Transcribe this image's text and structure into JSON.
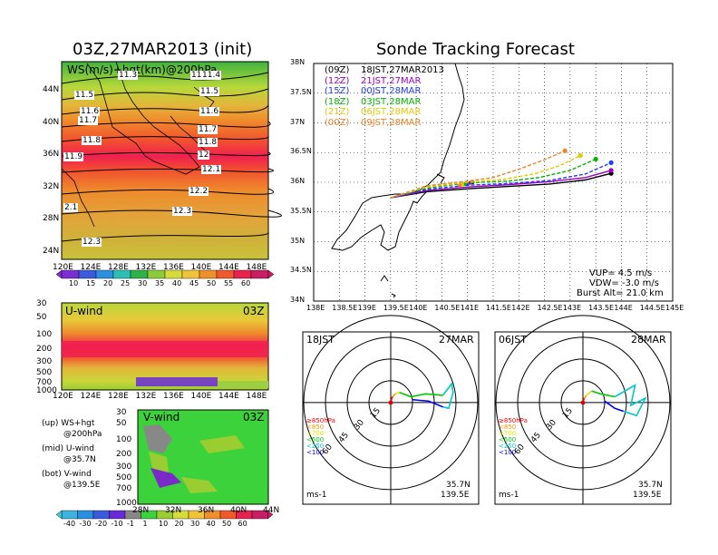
{
  "left_title": "03Z,27MAR2013 (init)",
  "right_title": "Sonde Tracking Forecast",
  "top_map": {
    "label": "WS(m/s)+hgt(km)@200hPa",
    "lon_ticks": [
      "120E",
      "124E",
      "128E",
      "132E",
      "136E",
      "140E",
      "144E",
      "148E"
    ],
    "lat_ticks": [
      "44N",
      "40N",
      "36N",
      "32N",
      "28N",
      "24N"
    ],
    "contour_labels": [
      "11.3",
      "11.4",
      "11.4",
      "11.5",
      "11.5",
      "11.6",
      "11.6",
      "11.7",
      "11.7",
      "11.8",
      "11.8",
      "11.9",
      "12",
      "12.1",
      "12.2",
      "12.3",
      "12.3",
      "2.1"
    ],
    "colorbar": [
      "10",
      "15",
      "20",
      "25",
      "30",
      "35",
      "40",
      "45",
      "50",
      "55",
      "60"
    ]
  },
  "u_panel": {
    "label": "U-wind",
    "time": "03Z",
    "y_ticks": [
      "30",
      "50",
      "100",
      "200",
      "300",
      "500",
      "700",
      "1000"
    ],
    "x_ticks": [
      "120E",
      "124E",
      "128E",
      "132E",
      "136E",
      "140E",
      "144E",
      "148E"
    ]
  },
  "v_panel": {
    "label": "V-wind",
    "time": "03Z",
    "y_ticks": [
      "30",
      "50",
      "100",
      "200",
      "300",
      "500",
      "700",
      "1000"
    ],
    "x_ticks": [
      "28N",
      "32N",
      "36N",
      "40N",
      "44N"
    ]
  },
  "legend_notes": [
    {
      "k": "(up) WS+hgt",
      "v": "@200hPa"
    },
    {
      "k": "(mid) U-wind",
      "v": "@35.7N"
    },
    {
      "k": "(bot) V-wind",
      "v": "@139.5E"
    }
  ],
  "bottom_colorbar": [
    "-40",
    "-30",
    "-20",
    "-10",
    "-1",
    "1",
    "10",
    "20",
    "30",
    "40",
    "50",
    "60"
  ],
  "track_map": {
    "lat_ticks": [
      "38N",
      "37.5N",
      "37N",
      "36.5N",
      "36N",
      "35.5N",
      "35N",
      "34.5N",
      "34N"
    ],
    "lon_ticks": [
      "138E",
      "138.5E",
      "139E",
      "139.5E",
      "140E",
      "140.5E",
      "141E",
      "141.5E",
      "142E",
      "142.5E",
      "143E",
      "143.5E",
      "144E",
      "144.5E",
      "145E"
    ],
    "legend": [
      {
        "z": "(09Z)",
        "t": "18JST,27MAR2013",
        "color": "#000000"
      },
      {
        "z": "(12Z)",
        "t": "21JST,27MAR",
        "color": "#a000c0"
      },
      {
        "z": "(15Z)",
        "t": "00JST,28MAR",
        "color": "#1e3cff"
      },
      {
        "z": "(18Z)",
        "t": "03JST,28MAR",
        "color": "#00b400"
      },
      {
        "z": "(21Z)",
        "t": "06JST,28MAR",
        "color": "#e6c800"
      },
      {
        "z": "(00Z)",
        "t": "09JST,28MAR",
        "color": "#f08228"
      }
    ],
    "vup": "VUP= 4.5 m/s",
    "vdw": "VDW= -3.0 m/s",
    "burst": "Burst Alt= 21.0 km"
  },
  "hodo_left": {
    "jst": "18JST",
    "date": "27MAR",
    "lat": "35.7N",
    "lon": "139.5E",
    "units": "ms-1"
  },
  "hodo_right": {
    "jst": "06JST",
    "date": "28MAR",
    "lat": "35.7N",
    "lon": "139.5E",
    "units": "ms-1"
  },
  "hodo_rings": [
    "15",
    "30",
    "45",
    "60"
  ],
  "hodo_levels": [
    {
      "t": "≥850hPa",
      "color": "#ff0000"
    },
    {
      "t": "<850",
      "color": "#ff9600"
    },
    {
      "t": "<700",
      "color": "#e6e600"
    },
    {
      "t": "<500",
      "color": "#00c800"
    },
    {
      "t": "<250",
      "color": "#00c8c8"
    },
    {
      "t": "<100",
      "color": "#0000ff"
    }
  ],
  "chart_data": [
    {
      "type": "line",
      "title": "Sonde Tracking Forecast",
      "xlim": [
        138,
        145
      ],
      "ylim": [
        34,
        38
      ],
      "series": [
        {
          "name": "(09Z) 18JST,27MAR2013",
          "x": [
            139.5,
            140.2,
            141,
            141.8,
            142.6,
            143.3,
            143.8
          ],
          "y": [
            35.74,
            35.84,
            35.89,
            35.93,
            35.97,
            36.04,
            36.15
          ]
        },
        {
          "name": "(12Z) 21JST,27MAR",
          "x": [
            139.5,
            140.2,
            141,
            141.8,
            142.6,
            143.3,
            143.8
          ],
          "y": [
            35.74,
            35.86,
            35.92,
            35.96,
            36.01,
            36.08,
            36.2
          ]
        },
        {
          "name": "(15Z) 00JST,28MAR",
          "x": [
            139.5,
            140.2,
            141,
            141.8,
            142.6,
            143.3,
            143.8
          ],
          "y": [
            35.74,
            35.88,
            35.95,
            35.98,
            36.03,
            36.14,
            36.33
          ]
        },
        {
          "name": "(18Z) 03JST,28MAR",
          "x": [
            139.5,
            140.2,
            141,
            141.8,
            142.4,
            143,
            143.5
          ],
          "y": [
            35.74,
            35.9,
            35.99,
            36.02,
            36.08,
            36.2,
            36.39
          ]
        },
        {
          "name": "(21Z) 06JST,28MAR",
          "x": [
            139.5,
            140.2,
            141,
            141.7,
            142.3,
            142.8,
            143.2
          ],
          "y": [
            35.74,
            35.92,
            36.0,
            36.05,
            36.14,
            36.28,
            36.45
          ]
        },
        {
          "name": "(00Z) 09JST,28MAR",
          "x": [
            139.5,
            140.2,
            141,
            141.5,
            142,
            142.5,
            142.9
          ],
          "y": [
            35.74,
            35.94,
            36.02,
            36.08,
            36.22,
            36.38,
            36.53
          ]
        }
      ]
    },
    {
      "type": "line",
      "title": "18JST 27MAR hodograph",
      "series": [
        {
          "name": "≥850hPa",
          "u": [
            0,
            0.7,
            1.4
          ],
          "v": [
            0,
            3,
            4
          ]
        },
        {
          "name": "<850",
          "u": [
            1.4,
            3.2
          ],
          "v": [
            4,
            6
          ]
        },
        {
          "name": "<700",
          "u": [
            3.2,
            6
          ],
          "v": [
            6,
            7
          ]
        },
        {
          "name": "<500",
          "u": [
            6,
            14,
            24,
            36
          ],
          "v": [
            7,
            4,
            6,
            5
          ]
        },
        {
          "name": "<250",
          "u": [
            36,
            42,
            43,
            40,
            36
          ],
          "v": [
            5,
            13,
            7,
            -4,
            -3
          ]
        },
        {
          "name": "<100",
          "u": [
            36,
            26,
            20,
            15
          ],
          "v": [
            -3,
            1,
            1.5,
            2
          ]
        }
      ]
    },
    {
      "type": "line",
      "title": "06JST 28MAR hodograph",
      "series": [
        {
          "name": "≥850hPa",
          "u": [
            0,
            0.5,
            1
          ],
          "v": [
            0,
            2,
            3
          ]
        },
        {
          "name": "<850",
          "u": [
            1,
            2.5
          ],
          "v": [
            3,
            5
          ]
        },
        {
          "name": "<700",
          "u": [
            2.5,
            6
          ],
          "v": [
            5,
            8
          ]
        },
        {
          "name": "<500",
          "u": [
            6,
            12,
            22
          ],
          "v": [
            8,
            6,
            4
          ]
        },
        {
          "name": "<250",
          "u": [
            22,
            36,
            33,
            43,
            37,
            28
          ],
          "v": [
            4,
            12,
            -2,
            3,
            -9,
            -6
          ]
        },
        {
          "name": "<100",
          "u": [
            28,
            22,
            15
          ],
          "v": [
            -6,
            -4,
            1
          ]
        }
      ]
    }
  ]
}
